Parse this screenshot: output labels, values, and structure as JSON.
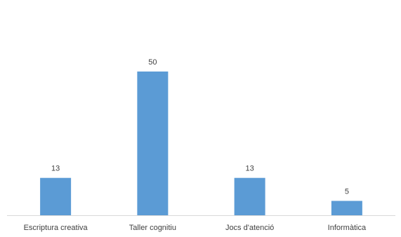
{
  "chart_data": {
    "type": "bar",
    "categories": [
      "Escriptura creativa",
      "Taller cognitiu",
      "Jocs d'atenció",
      "Informàtica"
    ],
    "values": [
      13,
      50,
      13,
      5
    ],
    "title": "",
    "xlabel": "",
    "ylabel": "",
    "ylim": [
      0,
      50
    ],
    "grid": false,
    "legend": "none",
    "data_labels": true,
    "bar_color": "#5b9bd5",
    "baseline_color": "#d9d9d9",
    "text_color": "#404040"
  }
}
